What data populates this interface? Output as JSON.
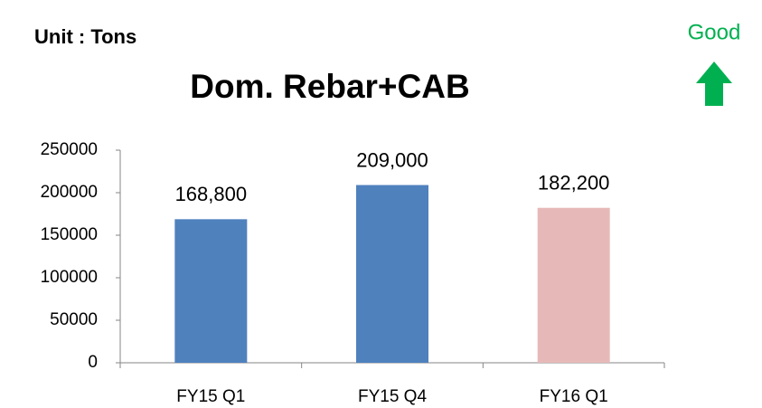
{
  "chart_data": {
    "type": "bar",
    "title": "Dom. Rebar+CAB",
    "unit_label": "Unit : Tons",
    "annotation": "Good",
    "categories": [
      "FY15 Q1",
      "FY15 Q4",
      "FY16 Q1"
    ],
    "values": [
      168800,
      209000,
      182200
    ],
    "value_labels": [
      "168,800",
      "209,000",
      "182,200"
    ],
    "colors": [
      "#4f81bd",
      "#4f81bd",
      "#e6b9b8"
    ],
    "ylim": [
      0,
      250000
    ],
    "yticks": [
      0,
      50000,
      100000,
      150000,
      200000,
      250000
    ],
    "grid": false
  }
}
